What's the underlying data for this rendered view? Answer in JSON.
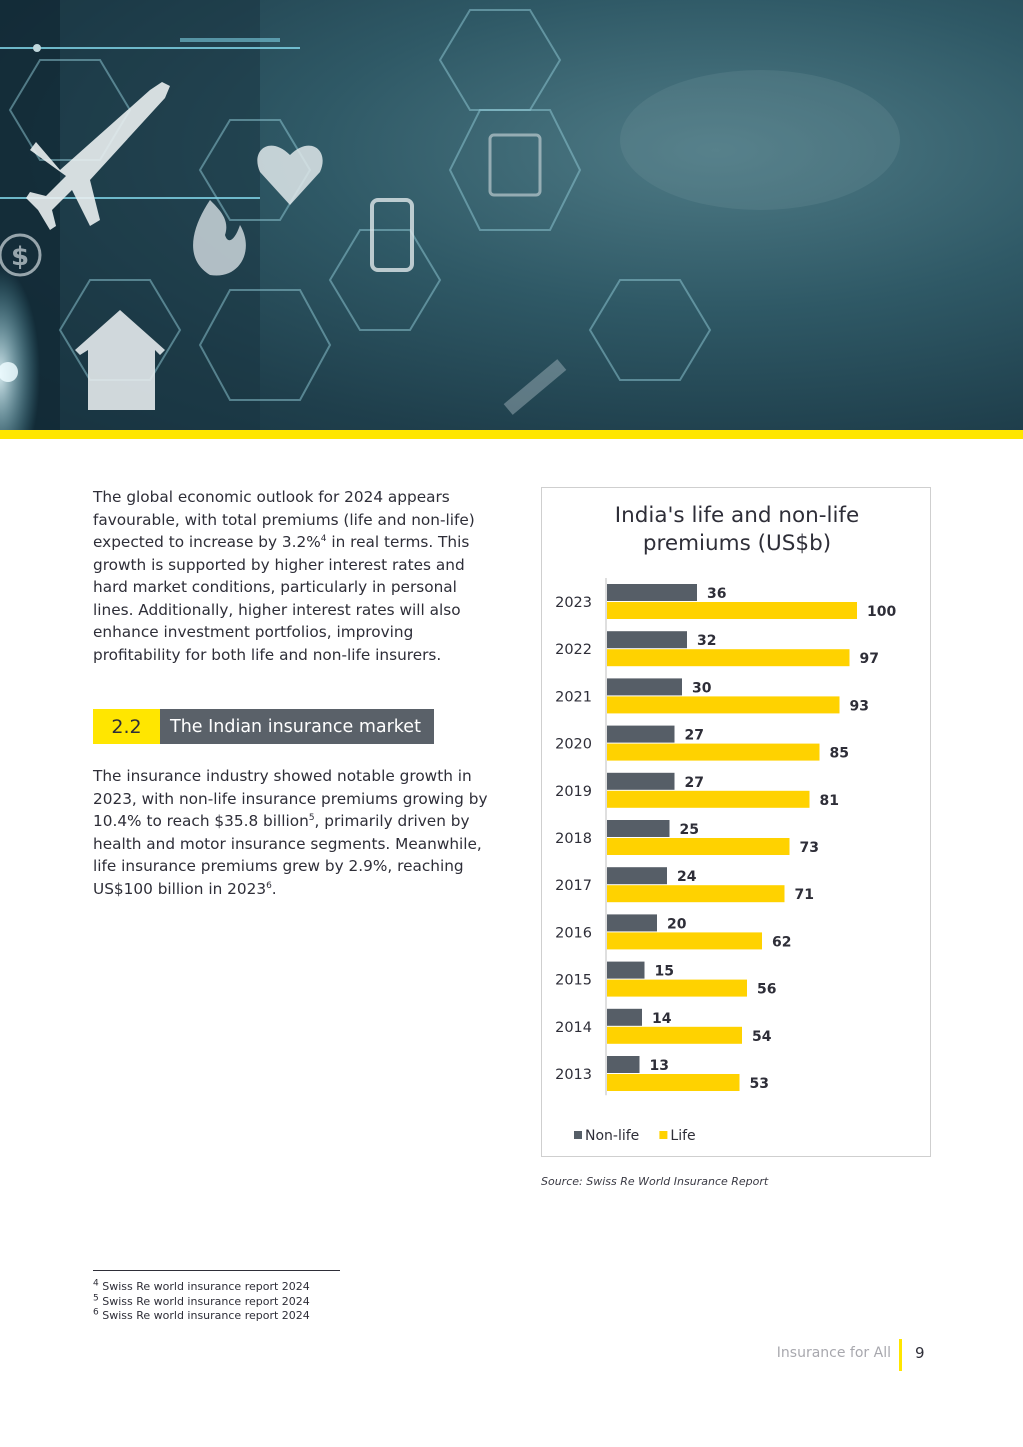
{
  "page": {
    "para1": {
      "t1": "The global economic outlook for 2024 appears favourable, with total premiums (life and non-life) expected to increase by 3.2%",
      "sup": "4",
      "t2": " in real terms.  This growth is supported by higher interest rates and hard market conditions, particularly in personal lines. Additionally, higher interest rates will also enhance investment portfolios, improving profitability for both life and non-life insurers."
    },
    "section": {
      "number": "2.2",
      "title": "The Indian insurance market"
    },
    "para2": {
      "t1": "The insurance industry showed notable growth in 2023, with non-life insurance premiums growing by 10.4% to reach $35.8 billion",
      "sup1": "5",
      "t2": ", primarily driven by health and motor insurance segments. Meanwhile, life insurance premiums grew by 2.9%, reaching US$100 billion in 2023",
      "sup2": "6",
      "t3": "."
    },
    "source": "Source: Swiss Re World Insurance Report",
    "footnotes": [
      {
        "num": "4",
        "text": " Swiss Re world insurance report 2024"
      },
      {
        "num": "5",
        "text": " Swiss Re world insurance report 2024"
      },
      {
        "num": "6",
        "text": " Swiss Re world insurance report 2024"
      }
    ],
    "footer": {
      "label": "Insurance for All",
      "page_number": "9"
    }
  },
  "chart_data": {
    "type": "bar",
    "orientation": "horizontal",
    "title_line1": "India's life and non-life",
    "title_line2": "premiums (US$b)",
    "categories": [
      "2023",
      "2022",
      "2021",
      "2020",
      "2019",
      "2018",
      "2017",
      "2016",
      "2015",
      "2014",
      "2013"
    ],
    "series": [
      {
        "name": "Non-life",
        "color": "#565e67",
        "values": [
          36,
          32,
          30,
          27,
          27,
          25,
          24,
          20,
          15,
          14,
          13
        ]
      },
      {
        "name": "Life",
        "color": "#ffd200",
        "values": [
          100,
          97,
          93,
          85,
          81,
          73,
          71,
          62,
          56,
          54,
          53
        ]
      }
    ],
    "xlim": [
      0,
      110
    ],
    "data_labels": true,
    "legend": "bottom-left",
    "grid": false
  },
  "colors": {
    "accent_yellow": "#ffe600",
    "dark_grey": "#2e2e38",
    "section_grey": "#5a6169"
  }
}
